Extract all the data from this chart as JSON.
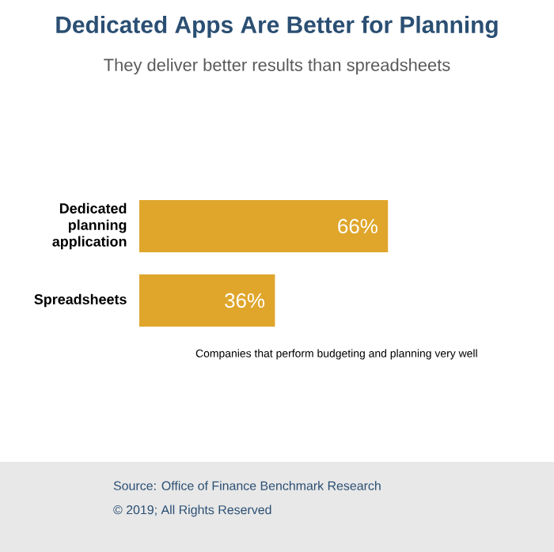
{
  "chart_data": {
    "type": "bar",
    "orientation": "horizontal",
    "title": "Dedicated Apps Are Better for Planning",
    "subtitle": "They deliver better results than spreadsheets",
    "categories": [
      "Dedicated planning application",
      "Spreadsheets"
    ],
    "values": [
      66,
      36
    ],
    "value_labels": [
      "66%",
      "36%"
    ],
    "color": "#dfa62b",
    "tick_labels": "y",
    "annotations": [
      "Companies that perform budgeting and planning very well",
      "Source: Office of Finance Benchmark Research",
      "© 2019; All Rights Reserved"
    ]
  }
}
